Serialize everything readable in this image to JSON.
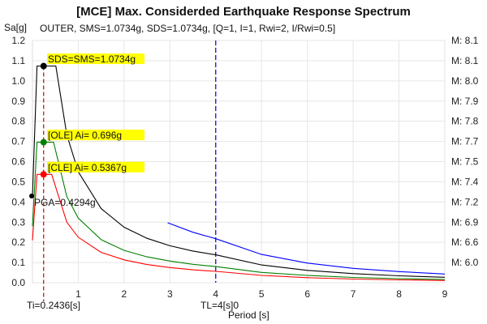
{
  "chart_data": {
    "type": "line",
    "title": "[MCE] Max. Considerded Earthquake Response Spectrum",
    "subtitle": "OUTER, SMS=1.0734g, SDS=1.0734g, [Q=1, I=1, Rwi=2, I/Rwi=0.5]",
    "xlabel": "Period [s]",
    "ylabel": "Sa[g]",
    "xlim": [
      0,
      9
    ],
    "ylim": [
      0,
      1.2
    ],
    "grid": true,
    "x_ticks": [
      1,
      2,
      3,
      4,
      5,
      6,
      7,
      8,
      9
    ],
    "y_ticks": [
      "0.0",
      "0.1",
      "0.2",
      "0.3",
      "0.4",
      "0.5",
      "0.6",
      "0.7",
      "0.8",
      "0.9",
      "1.0",
      "1.1",
      "1.2"
    ],
    "right_axis_labels": [
      "M: 6.0",
      "M: 6.6",
      "M: 6.9",
      "M: 7.2",
      "M: 7.4",
      "M: 7.5",
      "M: 7.7",
      "M: 7.8",
      "M: 7.9",
      "M: 8.0",
      "M: 8.1",
      "M: 8.1"
    ],
    "series": [
      {
        "name": "MCE",
        "color": "#000000",
        "x": [
          0,
          0.1,
          0.51,
          0.75,
          1,
          1.5,
          2,
          2.5,
          3,
          3.5,
          4,
          5,
          6,
          7,
          8,
          9
        ],
        "y": [
          0.4294,
          1.0734,
          1.0734,
          0.733,
          0.55,
          0.367,
          0.275,
          0.22,
          0.183,
          0.157,
          0.138,
          0.088,
          0.061,
          0.045,
          0.034,
          0.027
        ]
      },
      {
        "name": "OLE",
        "color": "#008000",
        "x": [
          0,
          0.1,
          0.46,
          0.75,
          1,
          1.5,
          2,
          2.5,
          3,
          3.5,
          4,
          5,
          6,
          7,
          8,
          9
        ],
        "y": [
          0.28,
          0.696,
          0.696,
          0.427,
          0.32,
          0.213,
          0.16,
          0.128,
          0.107,
          0.091,
          0.08,
          0.051,
          0.036,
          0.026,
          0.02,
          0.016
        ]
      },
      {
        "name": "CLE",
        "color": "#ff0000",
        "x": [
          0,
          0.1,
          0.42,
          0.75,
          1,
          1.5,
          2,
          2.5,
          3,
          3.5,
          4,
          5,
          6,
          7,
          8,
          9
        ],
        "y": [
          0.21,
          0.5367,
          0.5367,
          0.3,
          0.225,
          0.15,
          0.113,
          0.09,
          0.075,
          0.064,
          0.056,
          0.036,
          0.025,
          0.018,
          0.014,
          0.011
        ]
      },
      {
        "name": "Blue",
        "color": "#0000ff",
        "x": [
          2.95,
          3.5,
          4,
          5,
          6,
          7,
          8,
          9
        ],
        "y": [
          0.297,
          0.25,
          0.218,
          0.14,
          0.097,
          0.071,
          0.055,
          0.043
        ]
      }
    ],
    "markers": [
      {
        "name": "sds-marker",
        "x": 0.2436,
        "y": 1.0734,
        "color": "#000000"
      },
      {
        "name": "ole-marker",
        "x": 0.2436,
        "y": 0.696,
        "color": "#008000"
      },
      {
        "name": "cle-marker",
        "x": 0.2436,
        "y": 0.5367,
        "color": "#ff0000"
      },
      {
        "name": "pga-marker",
        "x": 0,
        "y": 0.4294,
        "color": "#000000"
      }
    ],
    "annotations": {
      "sds": "SDS=SMS=1.0734g",
      "ole": "[OLE] Ai= 0.696g",
      "cle": "[CLE] Ai= 0.5367g",
      "pga": "PGA=0.4294g",
      "ti": "Ti=0.2436[s]",
      "tl": "TL=4[s]0"
    },
    "ti_value": 0.2436,
    "tl_value": 4,
    "highlight_color": "#ffff00"
  }
}
